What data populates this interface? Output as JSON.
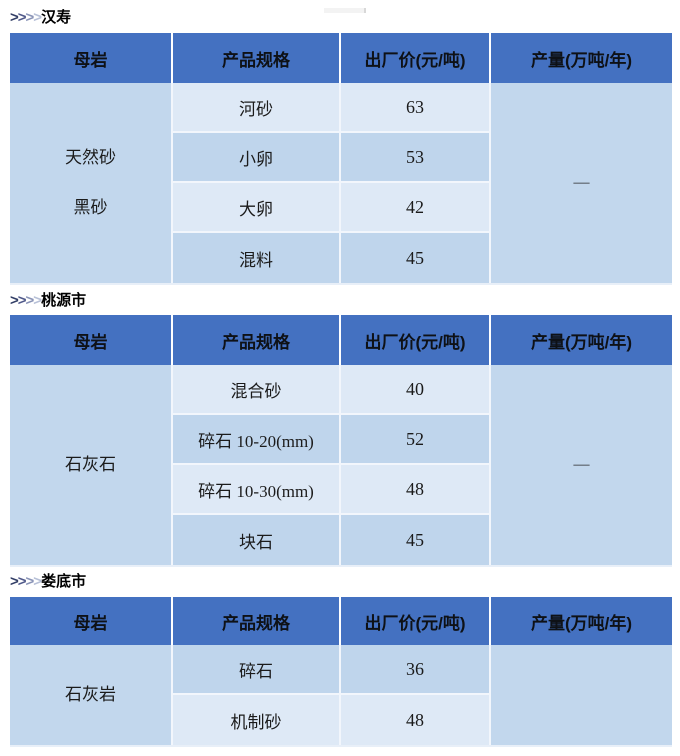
{
  "palette": {
    "css_vars": {
      "header-bg": "#4471C1",
      "header-text": "#0E1116",
      "row-light": "#DEE9F6",
      "row-medium": "#BFD5EC",
      "merged-bg": "#C2D7ED",
      "grid": "#F2F6FC",
      "body-text": "#1B1B1B",
      "title-color": "#000000",
      "chev-1": "#323E66",
      "chev-2": "#50598A",
      "chev-3": "#8A94B7",
      "chev-4": "#B7C0D7",
      "table-edge": "#E8EFF8"
    }
  },
  "chevron": {
    "chars": [
      ">",
      ">",
      ">",
      ">"
    ]
  },
  "columns": [
    "母岩",
    "产品规格",
    "出厂价(元/吨)",
    "产量(万吨/年)"
  ],
  "sections": [
    {
      "title": "汉寿",
      "rock_lines": [
        "天然砂",
        "黑砂"
      ],
      "output": "—",
      "rows": [
        {
          "spec": "河砂",
          "price": "63"
        },
        {
          "spec": "小卵",
          "price": "53"
        },
        {
          "spec": "大卵",
          "price": "42"
        },
        {
          "spec": "混料",
          "price": "45"
        }
      ]
    },
    {
      "title": "桃源市",
      "rock_lines": [
        "石灰石"
      ],
      "output": "—",
      "rows": [
        {
          "spec": "混合砂",
          "price": "40"
        },
        {
          "spec": "碎石 10-20(mm)",
          "price": "52"
        },
        {
          "spec": "碎石 10-30(mm)",
          "price": "48"
        },
        {
          "spec": "块石",
          "price": "45"
        }
      ]
    },
    {
      "title": "娄底市",
      "rock_lines": [
        "石灰岩"
      ],
      "output": "",
      "rows": [
        {
          "spec": "碎石",
          "price": "36"
        },
        {
          "spec": "机制砂",
          "price": "48"
        }
      ]
    }
  ]
}
